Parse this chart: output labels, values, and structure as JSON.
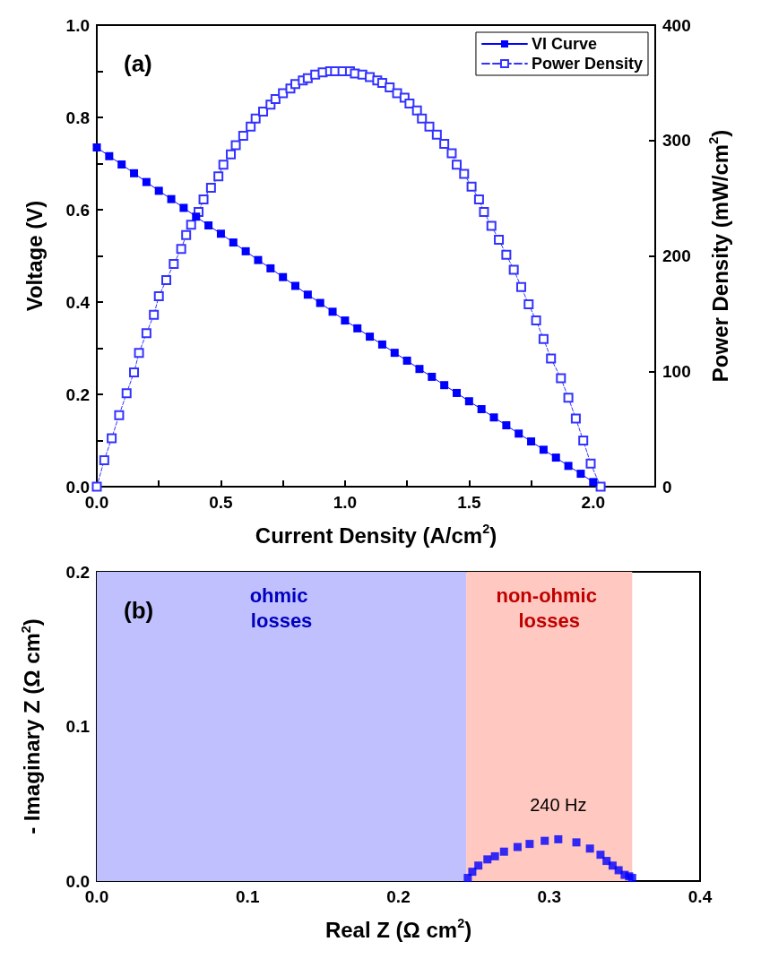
{
  "chart_data": [
    {
      "type": "line",
      "title": "(a)",
      "xlabel": "Current Density (A/cm$^{2}$)",
      "ylabel": "Voltage (V)",
      "y2label": "Power Density (mW/cm$^{2}$)",
      "xlim": [
        0,
        2.25
      ],
      "xticks": [
        {
          "value": 0,
          "label": "0.0"
        },
        {
          "value": 0.25,
          "label": null
        },
        {
          "value": 0.5,
          "label": "0.5"
        },
        {
          "value": 0.75,
          "label": null
        },
        {
          "value": 1,
          "label": "1.0"
        },
        {
          "value": 1.25,
          "label": null
        },
        {
          "value": 1.5,
          "label": "1.5"
        },
        {
          "value": 1.75,
          "label": null
        },
        {
          "value": 2,
          "label": "2.0"
        }
      ],
      "ylim": [
        0,
        1
      ],
      "yticks": [
        {
          "value": 0,
          "label": "0.0"
        },
        {
          "value": 0.1,
          "label": null
        },
        {
          "value": 0.2,
          "label": "0.2"
        },
        {
          "value": 0.3,
          "label": null
        },
        {
          "value": 0.4,
          "label": "0.4"
        },
        {
          "value": 0.5,
          "label": null
        },
        {
          "value": 0.6,
          "label": "0.6"
        },
        {
          "value": 0.7,
          "label": null
        },
        {
          "value": 0.8,
          "label": "0.8"
        },
        {
          "value": 0.9,
          "label": null
        },
        {
          "value": 1,
          "label": "1.0"
        }
      ],
      "y2lim": [
        0,
        400
      ],
      "y2ticks": [
        0,
        100,
        200,
        300,
        400
      ],
      "legend": "top right",
      "marker": "square",
      "series": [
        {
          "name": "VI Curve",
          "color": "#0000ff",
          "line_style": "solid",
          "x": [
            0,
            0.05,
            0.1,
            0.15,
            0.2,
            0.25,
            0.3,
            0.35,
            0.4,
            0.45,
            0.5,
            0.55,
            0.6,
            0.65,
            0.7,
            0.75,
            0.8,
            0.85,
            0.9,
            0.95,
            1,
            1.05,
            1.1,
            1.15,
            1.2,
            1.25,
            1.3,
            1.35,
            1.4,
            1.45,
            1.5,
            1.55,
            1.6,
            1.65,
            1.7,
            1.75,
            1.8,
            1.85,
            1.9,
            1.95,
            2
          ],
          "values": [
            0.735,
            0.716,
            0.698,
            0.679,
            0.66,
            0.641,
            0.623,
            0.604,
            0.585,
            0.566,
            0.548,
            0.529,
            0.51,
            0.491,
            0.473,
            0.454,
            0.435,
            0.416,
            0.398,
            0.379,
            0.36,
            0.343,
            0.325,
            0.308,
            0.29,
            0.273,
            0.255,
            0.238,
            0.22,
            0.203,
            0.185,
            0.168,
            0.15,
            0.133,
            0.115,
            0.098,
            0.08,
            0.063,
            0.045,
            0.028,
            0.01
          ]
        },
        {
          "name": "Power Density",
          "color": "#3333ff",
          "axis": "y2",
          "line_style": "dashed",
          "x": [
            0,
            0.03,
            0.06,
            0.09,
            0.12,
            0.15,
            0.17,
            0.2,
            0.23,
            0.25,
            0.28,
            0.31,
            0.34,
            0.36,
            0.38,
            0.41,
            0.43,
            0.46,
            0.49,
            0.51,
            0.54,
            0.56,
            0.59,
            0.62,
            0.64,
            0.67,
            0.7,
            0.72,
            0.75,
            0.78,
            0.8,
            0.83,
            0.85,
            0.88,
            0.91,
            0.94,
            0.96,
            0.99,
            1.02,
            1.04,
            1.07,
            1.1,
            1.13,
            1.15,
            1.18,
            1.21,
            1.24,
            1.26,
            1.29,
            1.31,
            1.34,
            1.37,
            1.4,
            1.43,
            1.45,
            1.48,
            1.51,
            1.54,
            1.56,
            1.59,
            1.62,
            1.65,
            1.68,
            1.71,
            1.74,
            1.77,
            1.8,
            1.83,
            1.87,
            1.9,
            1.93,
            1.96,
            1.99,
            2.03
          ],
          "values": [
            0,
            23,
            42,
            62,
            81,
            99,
            116,
            133,
            149,
            165,
            179,
            193,
            206,
            218,
            227,
            238,
            249,
            259,
            269,
            279,
            288,
            296,
            304,
            312,
            319,
            325,
            331,
            336,
            341,
            345,
            349,
            352,
            354,
            357,
            359,
            360,
            360,
            360,
            360,
            358,
            357,
            355,
            352,
            350,
            346,
            341,
            337,
            332,
            326,
            319,
            312,
            305,
            297,
            289,
            279,
            271,
            260,
            249,
            238,
            226,
            214,
            201,
            188,
            173,
            158,
            144,
            128,
            111,
            94,
            77,
            59,
            40,
            20,
            0
          ]
        }
      ]
    },
    {
      "type": "scatter",
      "title": "(b)",
      "xlabel": "Real Z (Ω cm$^{2}$)",
      "ylabel": "- Imaginary Z (Ω cm$^{2}$)",
      "xlim": [
        0,
        0.4
      ],
      "xticks": [
        {
          "value": 0,
          "label": "0.0"
        },
        {
          "value": 0.05,
          "label": null
        },
        {
          "value": 0.1,
          "label": "0.1"
        },
        {
          "value": 0.15,
          "label": null
        },
        {
          "value": 0.2,
          "label": "0.2"
        },
        {
          "value": 0.25,
          "label": null
        },
        {
          "value": 0.3,
          "label": "0.3"
        },
        {
          "value": 0.35,
          "label": null
        },
        {
          "value": 0.4,
          "label": "0.4"
        }
      ],
      "ylim": [
        0,
        0.2
      ],
      "yticks": [
        {
          "value": 0,
          "label": "0.0"
        },
        {
          "value": 0.05,
          "label": null
        },
        {
          "value": 0.1,
          "label": "0.1"
        },
        {
          "value": 0.15,
          "label": null
        },
        {
          "value": 0.2,
          "label": "0.2"
        }
      ],
      "marker": "square",
      "color": "#0000ff",
      "x": [
        0.246,
        0.249,
        0.253,
        0.259,
        0.264,
        0.27,
        0.279,
        0.287,
        0.297,
        0.306,
        0.318,
        0.327,
        0.334,
        0.338,
        0.342,
        0.346,
        0.35,
        0.353,
        0.355
      ],
      "values": [
        0.002,
        0.006,
        0.01,
        0.014,
        0.016,
        0.019,
        0.022,
        0.024,
        0.026,
        0.027,
        0.025,
        0.021,
        0.017,
        0.013,
        0.01,
        0.007,
        0.004,
        0.003,
        0.002
      ],
      "bands": [
        {
          "axis": "x",
          "from": 0,
          "to": 0.245,
          "label": "ohmic losses",
          "color": "#c0c0ff"
        },
        {
          "axis": "x",
          "from": 0.245,
          "to": 0.355,
          "label": "non-ohmic losses",
          "color": "#ffc8c0"
        }
      ],
      "annotations": [
        {
          "text": "240 Hz",
          "x": 0.306,
          "y": 0.027
        }
      ]
    }
  ]
}
